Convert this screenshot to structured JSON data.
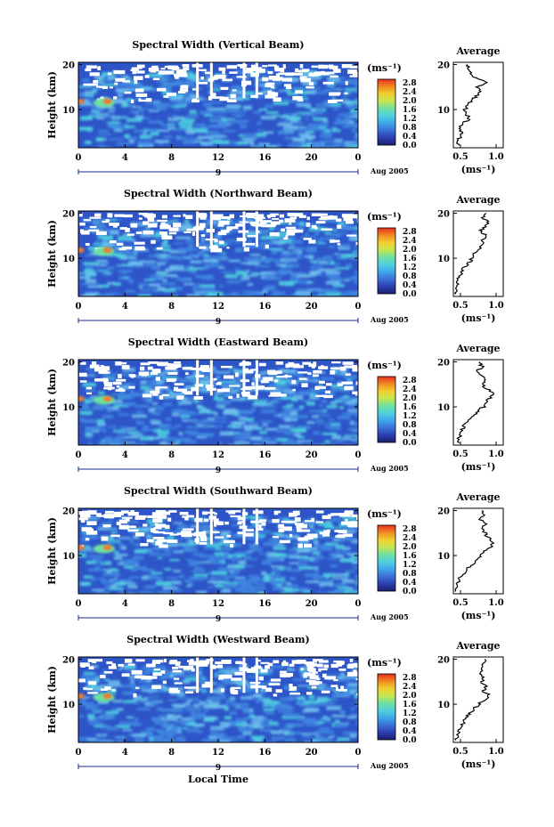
{
  "figure": {
    "date_label": "Aug 2005",
    "xlabel_bottom": "Local Time",
    "colorbar_unit": "(ms⁻¹)",
    "colorbar_ticks": [
      "0.0",
      "0.4",
      "0.8",
      "1.2",
      "1.6",
      "2.0",
      "2.4",
      "2.8"
    ],
    "colorbar_colors": [
      "#1a1f6e",
      "#2b3fb0",
      "#3a6fd8",
      "#3fa6e8",
      "#4fd0e0",
      "#6fe0a0",
      "#c8e650",
      "#f0d030",
      "#f08a20",
      "#e83020"
    ],
    "panel_colors": {
      "background": "#2d55c8",
      "mid": "#3f86e0",
      "light": "#6fc0ef",
      "cyan": "#4fd3df",
      "hot": "#f07a2a",
      "gap": "#ffffff"
    }
  },
  "chart_data": [
    {
      "type": "heatmap",
      "title": "Spectral Width (Vertical Beam)",
      "xlabel": "",
      "ylabel": "Height (km)",
      "x_ticks": [
        "0",
        "4",
        "8",
        "12",
        "16",
        "20",
        "0"
      ],
      "y_ticks": [
        "20",
        "10"
      ],
      "xlim": [
        0,
        24
      ],
      "ylim": [
        1.5,
        20.5
      ],
      "colorbar_range": [
        0.0,
        2.8
      ],
      "average_profile": {
        "title": "Average",
        "xlabel": "(ms⁻¹)",
        "x_ticks": [
          "0.5",
          "1.0"
        ],
        "y_ticks": [
          "20",
          "10"
        ],
        "xlim": [
          0.4,
          1.1
        ],
        "heights": [
          2,
          3,
          4,
          5,
          6,
          7,
          8,
          9,
          10,
          11,
          12,
          13,
          14,
          15,
          16,
          17,
          18,
          19,
          20
        ],
        "values": [
          0.48,
          0.46,
          0.5,
          0.52,
          0.49,
          0.55,
          0.62,
          0.58,
          0.56,
          0.6,
          0.66,
          0.72,
          0.78,
          0.74,
          0.9,
          0.7,
          0.64,
          0.62,
          0.6
        ]
      }
    },
    {
      "type": "heatmap",
      "title": "Spectral Width (Northward Beam)",
      "xlabel": "",
      "ylabel": "Height (km)",
      "x_ticks": [
        "0",
        "4",
        "8",
        "12",
        "16",
        "20",
        "0"
      ],
      "y_ticks": [
        "20",
        "10"
      ],
      "xlim": [
        0,
        24
      ],
      "ylim": [
        1.5,
        20.5
      ],
      "colorbar_range": [
        0.0,
        2.8
      ],
      "average_profile": {
        "title": "Average",
        "xlabel": "(ms⁻¹)",
        "x_ticks": [
          "0.5",
          "1.0"
        ],
        "y_ticks": [
          "20",
          "10"
        ],
        "xlim": [
          0.4,
          1.1
        ],
        "heights": [
          2,
          3,
          4,
          5,
          6,
          7,
          8,
          9,
          10,
          11,
          12,
          13,
          14,
          15,
          16,
          17,
          18,
          19,
          20
        ],
        "values": [
          0.42,
          0.43,
          0.45,
          0.46,
          0.48,
          0.52,
          0.55,
          0.62,
          0.66,
          0.7,
          0.76,
          0.82,
          0.8,
          0.86,
          0.78,
          0.84,
          0.88,
          0.82,
          0.86
        ]
      }
    },
    {
      "type": "heatmap",
      "title": "Spectral Width (Eastward Beam)",
      "xlabel": "",
      "ylabel": "Height (km)",
      "x_ticks": [
        "0",
        "4",
        "8",
        "12",
        "16",
        "20",
        "0"
      ],
      "y_ticks": [
        "20",
        "10"
      ],
      "xlim": [
        0,
        24
      ],
      "ylim": [
        1.5,
        20.5
      ],
      "colorbar_range": [
        0.0,
        2.8
      ],
      "average_profile": {
        "title": "Average",
        "xlabel": "(ms⁻¹)",
        "x_ticks": [
          "0.5",
          "1.0"
        ],
        "y_ticks": [
          "20",
          "10"
        ],
        "xlim": [
          0.4,
          1.1
        ],
        "heights": [
          2,
          3,
          4,
          5,
          6,
          7,
          8,
          9,
          10,
          11,
          12,
          13,
          14,
          15,
          16,
          17,
          18,
          19,
          20
        ],
        "values": [
          0.46,
          0.48,
          0.5,
          0.52,
          0.56,
          0.62,
          0.68,
          0.74,
          0.82,
          0.86,
          0.92,
          0.98,
          0.88,
          0.8,
          0.84,
          0.78,
          0.74,
          0.8,
          0.76
        ]
      }
    },
    {
      "type": "heatmap",
      "title": "Spectral Width (Southward Beam)",
      "xlabel": "",
      "ylabel": "Height (km)",
      "x_ticks": [
        "0",
        "4",
        "8",
        "12",
        "16",
        "20",
        "0"
      ],
      "y_ticks": [
        "20",
        "10"
      ],
      "xlim": [
        0,
        24
      ],
      "ylim": [
        1.5,
        20.5
      ],
      "colorbar_range": [
        0.0,
        2.8
      ],
      "average_profile": {
        "title": "Average",
        "xlabel": "(ms⁻¹)",
        "x_ticks": [
          "0.5",
          "1.0"
        ],
        "y_ticks": [
          "20",
          "10"
        ],
        "xlim": [
          0.4,
          1.1
        ],
        "heights": [
          2,
          3,
          4,
          5,
          6,
          7,
          8,
          9,
          10,
          11,
          12,
          13,
          14,
          15,
          16,
          17,
          18,
          19,
          20
        ],
        "values": [
          0.44,
          0.46,
          0.47,
          0.5,
          0.54,
          0.6,
          0.66,
          0.72,
          0.78,
          0.84,
          0.92,
          0.96,
          0.88,
          0.84,
          0.8,
          0.86,
          0.78,
          0.82,
          0.8
        ]
      }
    },
    {
      "type": "heatmap",
      "title": "Spectral Width (Westward Beam)",
      "xlabel": "",
      "ylabel": "Height (km)",
      "x_ticks": [
        "0",
        "4",
        "8",
        "12",
        "16",
        "20",
        "0"
      ],
      "y_ticks": [
        "20",
        "10"
      ],
      "xlim": [
        0,
        24
      ],
      "ylim": [
        1.5,
        20.5
      ],
      "colorbar_range": [
        0.0,
        2.8
      ],
      "average_profile": {
        "title": "Average",
        "xlabel": "(ms⁻¹)",
        "x_ticks": [
          "0.5",
          "1.0"
        ],
        "y_ticks": [
          "20",
          "10"
        ],
        "xlim": [
          0.4,
          1.1
        ],
        "heights": [
          2,
          3,
          4,
          5,
          6,
          7,
          8,
          9,
          10,
          11,
          12,
          13,
          14,
          15,
          16,
          17,
          18,
          19,
          20
        ],
        "values": [
          0.44,
          0.45,
          0.48,
          0.5,
          0.54,
          0.58,
          0.64,
          0.7,
          0.76,
          0.84,
          0.9,
          0.82,
          0.86,
          0.8,
          0.84,
          0.78,
          0.82,
          0.8,
          0.84
        ]
      }
    }
  ]
}
